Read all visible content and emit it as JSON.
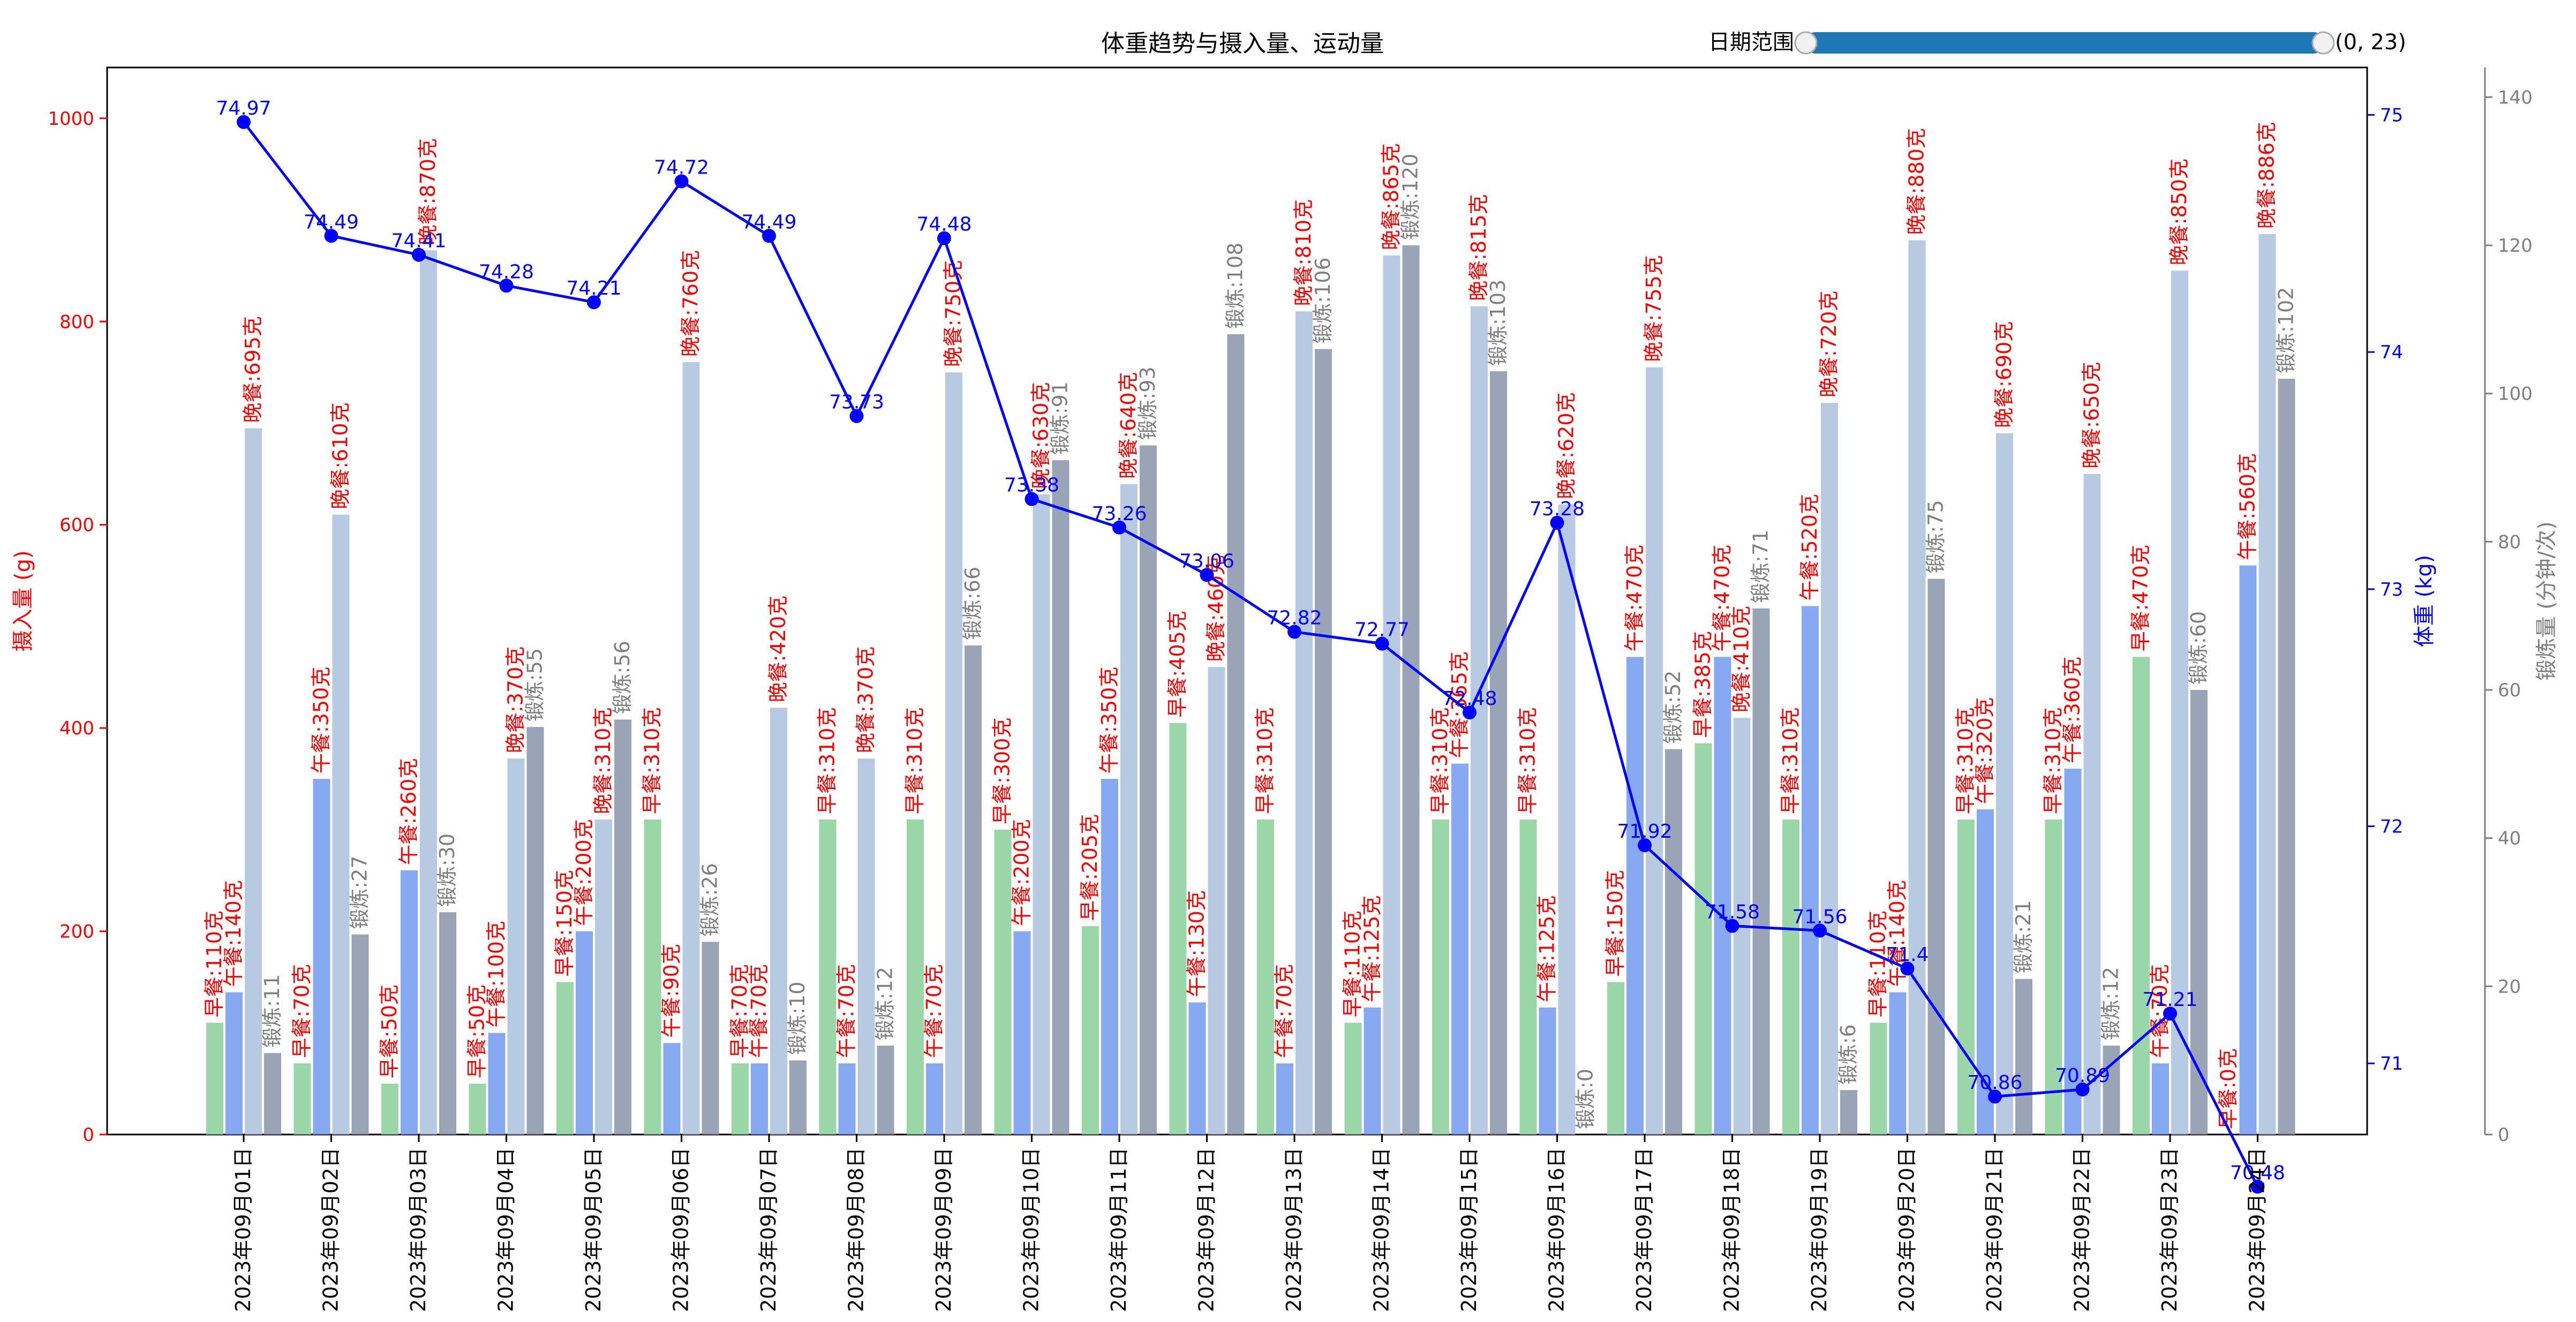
{
  "chart_data": {
    "type": "bar",
    "title": "体重趋势与摄入量、运动量",
    "ylabel_left": "摄入量 (g)",
    "ylabel_right": "体重 (kg)",
    "ylabel_right2": "锻炼量 (分钟/次)",
    "ylim_left": [
      0,
      1050
    ],
    "ylim_right": [
      70.7,
      75.2
    ],
    "ylim_right2": [
      0,
      144
    ],
    "yticks_left": [
      "0",
      "200",
      "400",
      "600",
      "800",
      "1000"
    ],
    "yticks_right": [
      "71",
      "72",
      "73",
      "74",
      "75"
    ],
    "yticks_right2": [
      "0",
      "20",
      "40",
      "60",
      "80",
      "100",
      "120",
      "140"
    ],
    "categories": [
      "2023年09月01日",
      "2023年09月02日",
      "2023年09月03日",
      "2023年09月04日",
      "2023年09月05日",
      "2023年09月06日",
      "2023年09月07日",
      "2023年09月08日",
      "2023年09月09日",
      "2023年09月10日",
      "2023年09月11日",
      "2023年09月12日",
      "2023年09月13日",
      "2023年09月14日",
      "2023年09月15日",
      "2023年09月16日",
      "2023年09月17日",
      "2023年09月18日",
      "2023年09月19日",
      "2023年09月20日",
      "2023年09月21日",
      "2023年09月22日",
      "2023年09月23日",
      "2023年09月24日"
    ],
    "series": [
      {
        "name": "早餐",
        "values": [
          110,
          70,
          50,
          50,
          150,
          310,
          70,
          310,
          310,
          300,
          205,
          405,
          310,
          110,
          310,
          310,
          150,
          385,
          310,
          110,
          310,
          310,
          470,
          0
        ]
      },
      {
        "name": "午餐",
        "values": [
          140,
          350,
          260,
          100,
          200,
          90,
          70,
          70,
          70,
          200,
          350,
          130,
          70,
          125,
          365,
          125,
          470,
          470,
          520,
          140,
          320,
          360,
          70,
          560
        ]
      },
      {
        "name": "晚餐",
        "values": [
          695,
          610,
          870,
          370,
          310,
          760,
          420,
          370,
          750,
          630,
          640,
          460,
          810,
          865,
          815,
          620,
          755,
          410,
          720,
          880,
          690,
          650,
          850,
          886
        ]
      },
      {
        "name": "锻炼",
        "values": [
          11,
          27,
          30,
          55,
          56,
          26,
          10,
          12,
          66,
          91,
          93,
          108,
          106,
          120,
          103,
          0,
          52,
          71,
          6,
          75,
          21,
          12,
          60,
          102
        ]
      }
    ],
    "weight": [
      74.97,
      74.49,
      74.41,
      74.28,
      74.21,
      74.72,
      74.49,
      73.73,
      74.48,
      73.38,
      73.26,
      73.06,
      72.82,
      72.77,
      72.48,
      73.28,
      71.92,
      71.58,
      71.56,
      71.4,
      70.86,
      70.89,
      71.21,
      70.48
    ],
    "weight_labels": [
      "74.97",
      "74.49",
      "74.41",
      "74.28",
      "74.21",
      "74.72",
      "74.49",
      "73.73",
      "74.48",
      "73.38",
      "73.26",
      "73.06",
      "72.82",
      "72.77",
      "72.48",
      "73.28",
      "71.92",
      "71.58",
      "71.56",
      "71.4",
      "70.86",
      "70.89",
      "71.21",
      "70.48"
    ],
    "meal_labels": {
      "breakfast": [
        "早餐:110克",
        "早餐:70克",
        "早餐:50克",
        "早餐:50克",
        "早餐:150克",
        "早餐:310克",
        "早餐:70克",
        "早餐:310克",
        "早餐:310克",
        "早餐:300克",
        "早餐:205克",
        "早餐:405克",
        "早餐:310克",
        "早餐:110克",
        "早餐:310克",
        "早餐:310克",
        "早餐:150克",
        "早餐:385克",
        "早餐:310克",
        "早餐:110克",
        "早餐:310克",
        "早餐:310克",
        "早餐:470克",
        "早餐:0克"
      ],
      "lunch": [
        "午餐:140克",
        "午餐:350克",
        "午餐:260克",
        "午餐:100克",
        "午餐:200克",
        "午餐:90克",
        "午餐:70克",
        "午餐:70克",
        "午餐:70克",
        "午餐:200克",
        "午餐:350克",
        "午餐:130克",
        "午餐:70克",
        "午餐:125克",
        "午餐:365克",
        "午餐:125克",
        "午餐:470克",
        "午餐:470克",
        "午餐:520克",
        "午餐:140克",
        "午餐:320克",
        "午餐:360克",
        "午餐:70克",
        "午餐:560克"
      ],
      "dinner": [
        "晚餐:695克",
        "晚餐:610克",
        "晚餐:870克",
        "晚餐:370克",
        "晚餐:310克",
        "晚餐:760克",
        "晚餐:420克",
        "晚餐:370克",
        "晚餐:750克",
        "晚餐:630克",
        "晚餐:640克",
        "晚餐:460克",
        "晚餐:810克",
        "晚餐:865克",
        "晚餐:815克",
        "晚餐:620克",
        "晚餐:755克",
        "晚餐:410克",
        "晚餐:720克",
        "晚餐:880克",
        "晚餐:690克",
        "晚餐:650克",
        "晚餐:850克",
        "晚餐:886克"
      ],
      "exercise": [
        "锻炼:11",
        "锻炼:27",
        "锻炼:30",
        "锻炼:55",
        "锻炼:56",
        "锻炼:26",
        "锻炼:10",
        "锻炼:12",
        "锻炼:66",
        "锻炼:91",
        "锻炼:93",
        "锻炼:108",
        "锻炼:106",
        "锻炼:120",
        "锻炼:103",
        "锻炼:0",
        "锻炼:52",
        "锻炼:71",
        "锻炼:6",
        "锻炼:75",
        "锻炼:21",
        "锻炼:12",
        "锻炼:60",
        "锻炼:102"
      ]
    },
    "slider": {
      "label": "日期范围",
      "value_text": "(0, 23)",
      "range": [
        0,
        23
      ]
    },
    "colors": {
      "breakfast": "#8fd19e",
      "lunch": "#7aa0f0",
      "dinner": "#b0c4de",
      "exercise": "#8e9aaf",
      "weight_line": "#0000ff",
      "left_axis": "#ff0000",
      "right_axis": "#0000ff",
      "right2_axis": "#7f7f7f",
      "slider_fill": "#1f77b4"
    },
    "legend": "none",
    "grid": false
  }
}
